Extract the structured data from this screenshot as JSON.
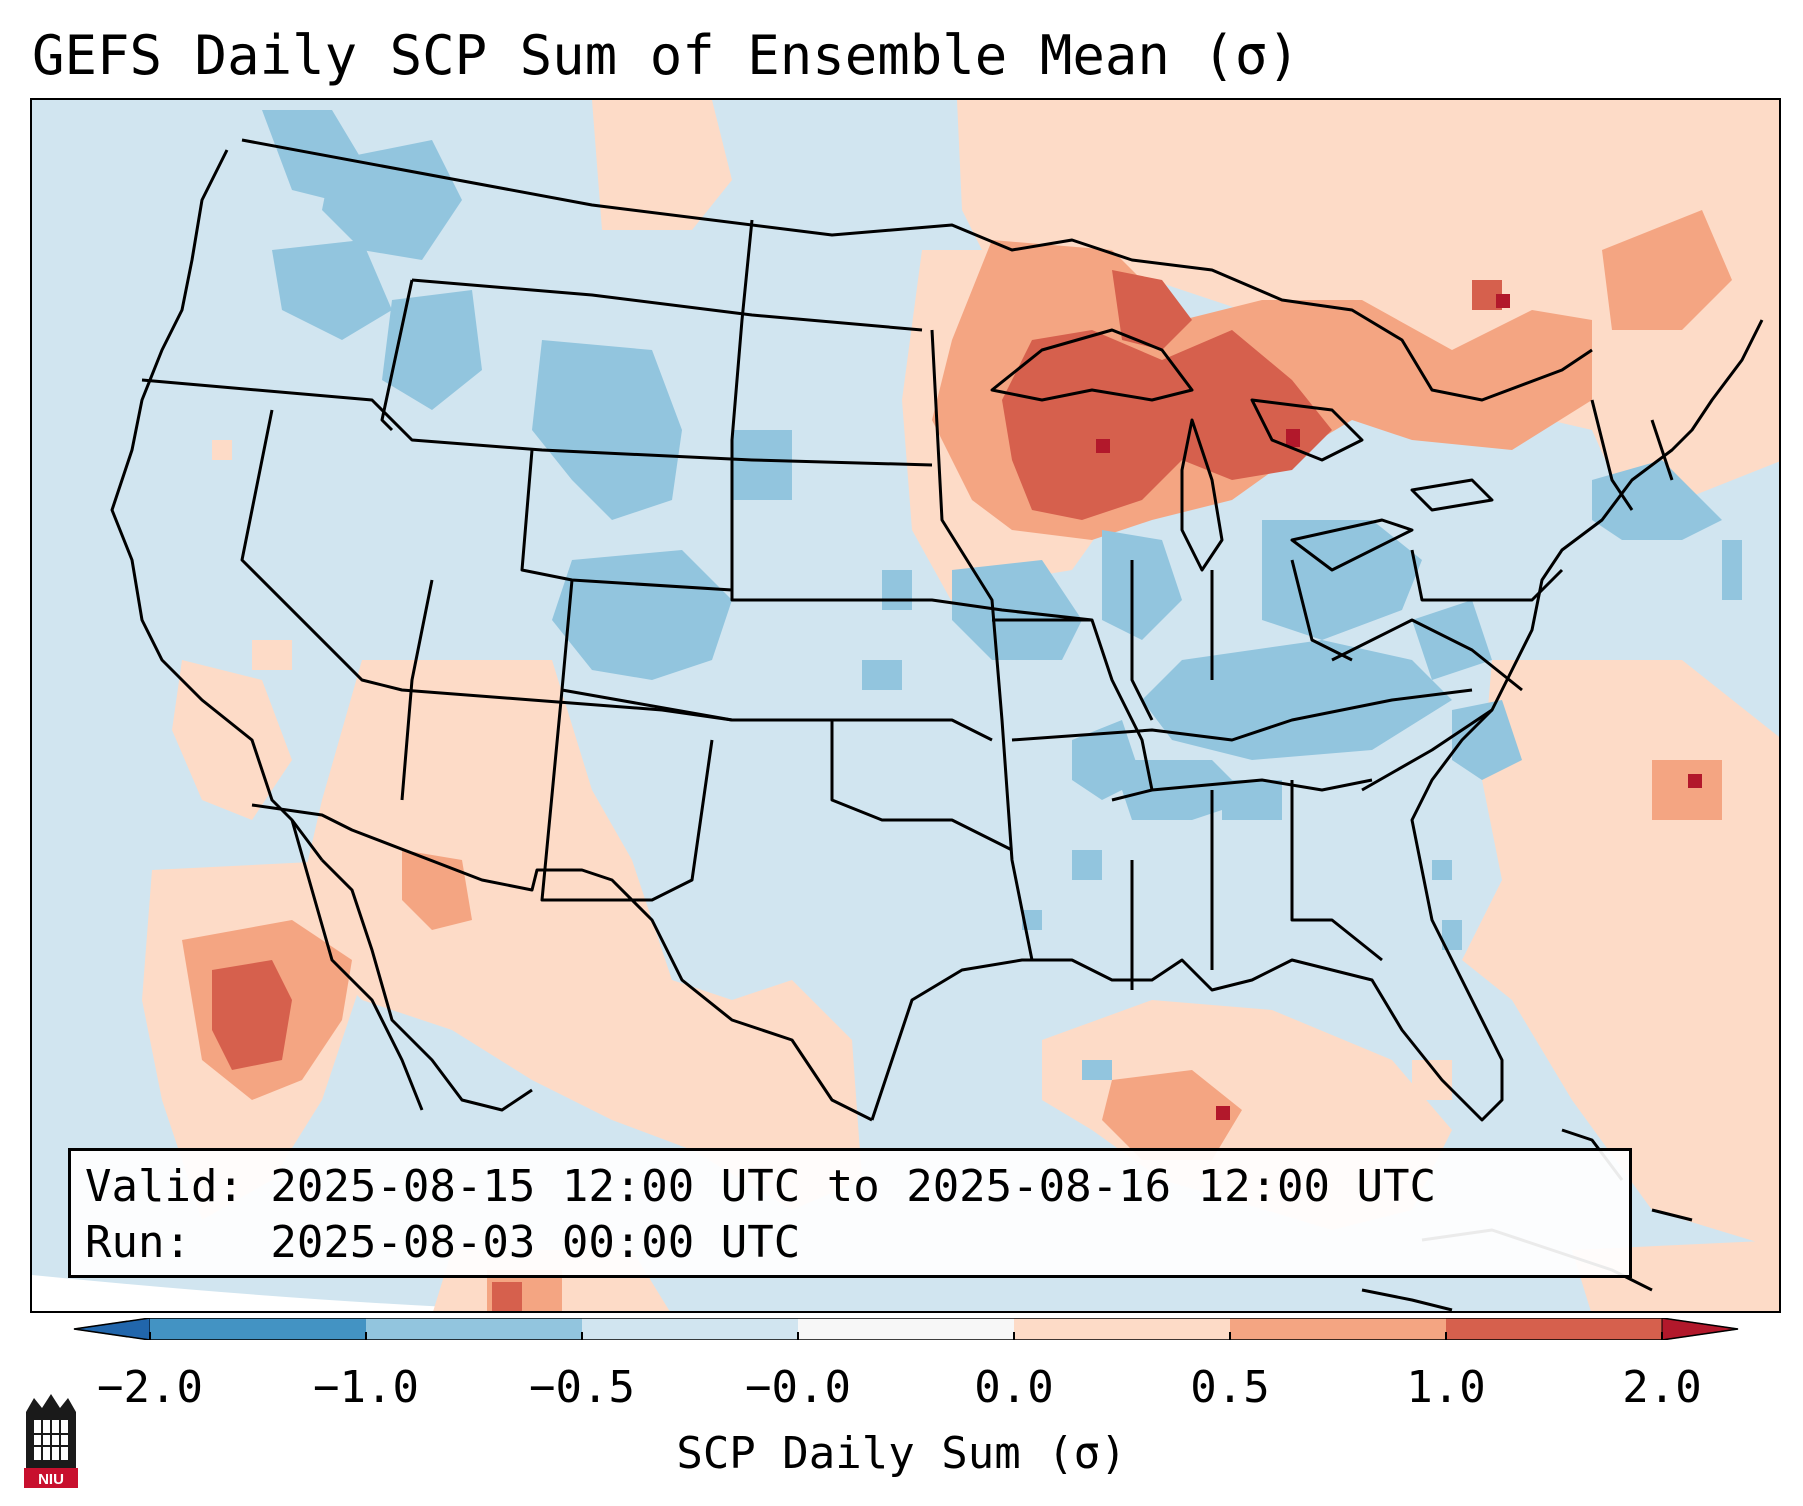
{
  "title": "GEFS Daily SCP Sum of Ensemble Mean (σ)",
  "info": {
    "valid_line": "Valid: 2025-08-15 12:00 UTC to 2025-08-16 12:00 UTC",
    "run_line": "Run:   2025-08-03 00:00 UTC"
  },
  "colorbar": {
    "label": "SCP Daily Sum (σ)",
    "ticks": [
      "−2.0",
      "−1.0",
      "−0.5",
      "−0.0",
      "0.0",
      "0.5",
      "1.0",
      "2.0"
    ],
    "colors": [
      "#4393c3",
      "#92c5de",
      "#d1e5f0",
      "#f7f7f7",
      "#fddbc7",
      "#f4a582",
      "#d6604d"
    ],
    "extend_low_color": "#2166ac",
    "extend_high_color": "#b2182b"
  },
  "map": {
    "ocean_base_color": "#d1e5f0",
    "border_color": "#000000"
  },
  "logo": {
    "text": "NIU"
  }
}
